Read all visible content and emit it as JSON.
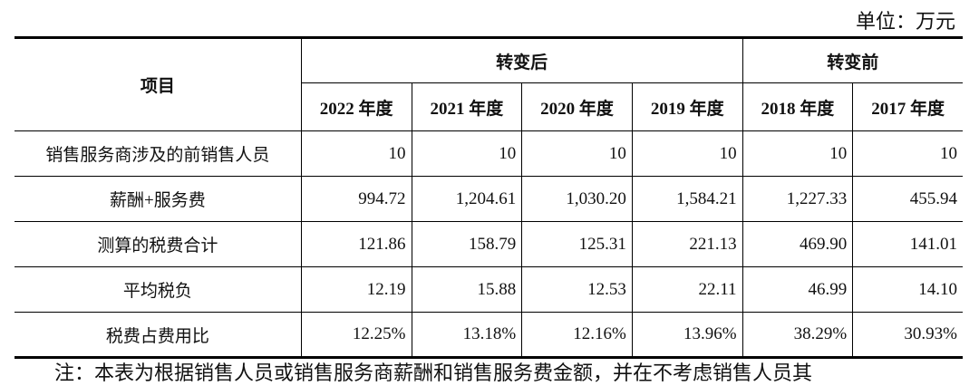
{
  "unit": "单位：万元",
  "table": {
    "header": {
      "item": "项目",
      "groups": [
        "转变后",
        "转变前"
      ],
      "years": [
        "2022 年度",
        "2021 年度",
        "2020 年度",
        "2019 年度",
        "2018 年度",
        "2017 年度"
      ]
    },
    "rows": [
      [
        "销售服务商涉及的前销售人员",
        "10",
        "10",
        "10",
        "10",
        "10",
        "10"
      ],
      [
        "薪酬+服务费",
        "994.72",
        "1,204.61",
        "1,030.20",
        "1,584.21",
        "1,227.33",
        "455.94"
      ],
      [
        "测算的税费合计",
        "121.86",
        "158.79",
        "125.31",
        "221.13",
        "469.90",
        "141.01"
      ],
      [
        "平均税负",
        "12.19",
        "15.88",
        "12.53",
        "22.11",
        "46.99",
        "14.10"
      ],
      [
        "税费占费用比",
        "12.25%",
        "13.18%",
        "12.16%",
        "13.96%",
        "38.29%",
        "30.93%"
      ]
    ]
  },
  "note": "注：本表为根据销售人员或销售服务商薪酬和销售服务费金额，并在不考虑销售人员其"
}
